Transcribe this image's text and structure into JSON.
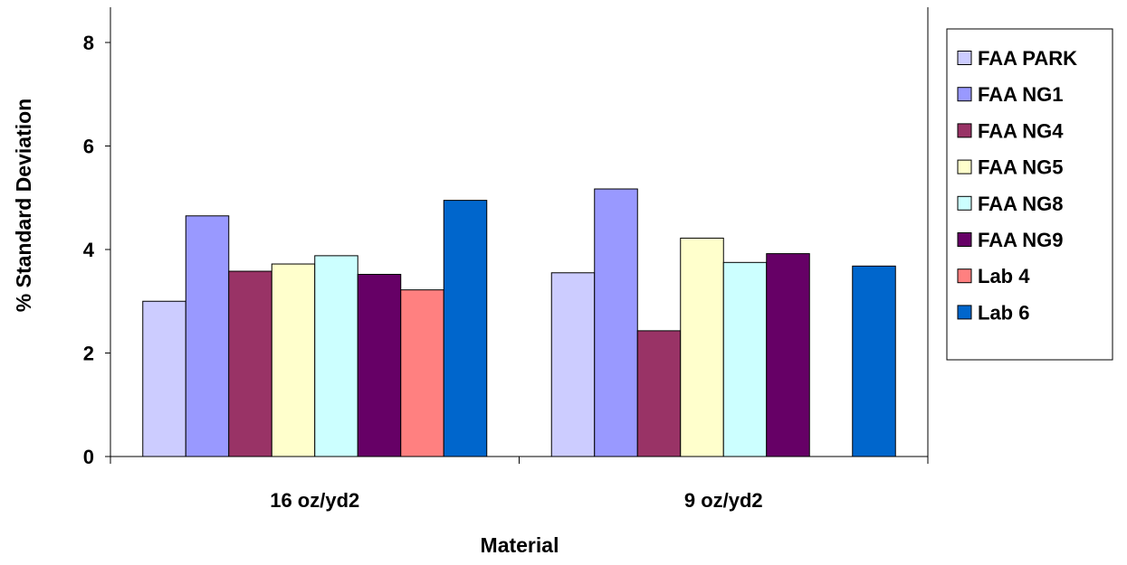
{
  "chart_data": {
    "type": "bar",
    "title": "",
    "xlabel": "Material",
    "ylabel": "% Standard Deviation",
    "categories": [
      "16 oz/yd2",
      "9 oz/yd2"
    ],
    "ylim": [
      0,
      8
    ],
    "yticks": [
      0,
      2,
      4,
      6,
      8
    ],
    "grid": false,
    "legend_position": "right",
    "series": [
      {
        "name": "FAA PARK",
        "color": "#ccccff",
        "values": [
          3.0,
          3.55
        ]
      },
      {
        "name": "FAA NG1",
        "color": "#9999ff",
        "values": [
          4.65,
          5.17
        ]
      },
      {
        "name": "FAA NG4",
        "color": "#993366",
        "values": [
          3.58,
          2.43
        ]
      },
      {
        "name": "FAA NG5",
        "color": "#ffffcc",
        "values": [
          3.72,
          4.22
        ]
      },
      {
        "name": "FAA NG8",
        "color": "#ccffff",
        "values": [
          3.88,
          3.75
        ]
      },
      {
        "name": "FAA NG9",
        "color": "#660066",
        "values": [
          3.52,
          3.92
        ]
      },
      {
        "name": "Lab 4",
        "color": "#ff8080",
        "values": [
          3.22,
          null
        ]
      },
      {
        "name": "Lab 6",
        "color": "#0066cc",
        "values": [
          4.95,
          3.68
        ]
      }
    ]
  }
}
